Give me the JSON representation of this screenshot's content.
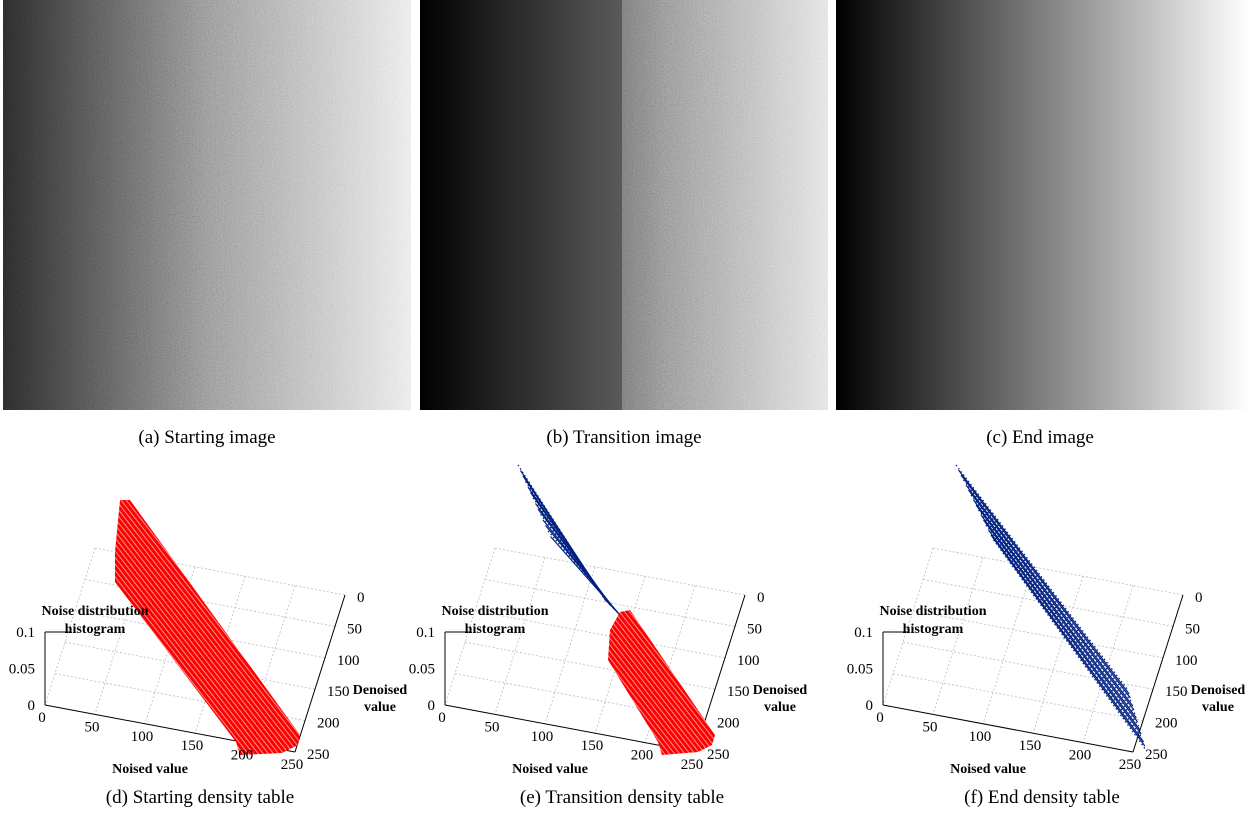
{
  "images": [
    {
      "caption": "(a) Starting image"
    },
    {
      "caption": "(b) Transition image"
    },
    {
      "caption": "(c) End image"
    }
  ],
  "plots": [
    {
      "caption": "(d) Starting density table",
      "x_label": "Noised value",
      "y_label": [
        "Denoised",
        "value"
      ],
      "z_label": [
        "Noise distribution",
        "histogram"
      ],
      "x_ticks": [
        0,
        50,
        100,
        150,
        200,
        250
      ],
      "y_ticks": [
        0,
        50,
        100,
        150,
        200,
        250
      ],
      "z_ticks": [
        0,
        0.05,
        0.1
      ]
    },
    {
      "caption": "(e) Transition density table",
      "x_label": "Noised value",
      "y_label": [
        "Denoised",
        "value"
      ],
      "z_label": [
        "Noise distribution",
        "histogram"
      ],
      "x_ticks": [
        0,
        50,
        100,
        150,
        200,
        250
      ],
      "y_ticks": [
        0,
        50,
        100,
        150,
        200,
        250
      ],
      "z_ticks": [
        0,
        0.05,
        0.1
      ]
    },
    {
      "caption": "(f) End density table",
      "x_label": "Noised value",
      "y_label": [
        "Denoised",
        "value"
      ],
      "z_label": [
        "Noise distribution",
        "histogram"
      ],
      "x_ticks": [
        0,
        50,
        100,
        150,
        200,
        250
      ],
      "y_ticks": [
        0,
        50,
        100,
        150,
        200,
        250
      ],
      "z_ticks": [
        0,
        0.05,
        0.1
      ]
    }
  ]
}
